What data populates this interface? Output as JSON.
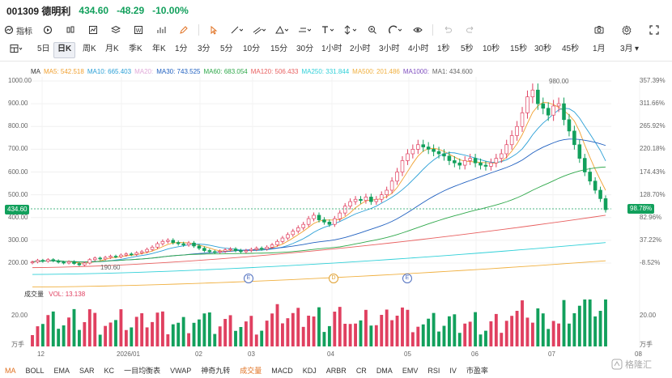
{
  "header": {
    "code": "001309 德明利",
    "price": "434.60",
    "change": "-48.29",
    "pct": "-10.00%"
  },
  "toolbar": {
    "indicator_label": "指标",
    "icons": [
      "indicator-icon",
      "replay-icon",
      "candle-type-icon",
      "chart-type-icon",
      "layers-icon",
      "adjust-icon",
      "compare-icon",
      "pen-icon",
      "cursor-icon",
      "line-tool-icon",
      "channel-tool-icon",
      "fib-tool-icon",
      "pattern-tool-icon",
      "text-tool-icon",
      "measure-tool-icon",
      "zoom-icon",
      "magnet-icon",
      "eye-icon",
      "undo-icon",
      "redo-icon"
    ],
    "right_icons": [
      "screenshot-icon",
      "settings-icon",
      "fullscreen-icon"
    ]
  },
  "periods": [
    "5日",
    "日K",
    "周K",
    "月K",
    "季K",
    "年K",
    "1分",
    "3分",
    "5分",
    "10分",
    "15分",
    "30分",
    "1小时",
    "2小时",
    "3小时",
    "4小时",
    "1秒",
    "5秒",
    "10秒",
    "15秒",
    "30秒",
    "45秒",
    "1月",
    "3月"
  ],
  "active_period": "日K",
  "ma_legend": [
    {
      "text": "MA",
      "color": "#333333"
    },
    {
      "text": "MA5: 542.518",
      "color": "#f0a030"
    },
    {
      "text": "MA10: 665.403",
      "color": "#2a9fd6"
    },
    {
      "text": "MA20:",
      "color": "#e0a8d8"
    },
    {
      "text": "MA30: 743.525",
      "color": "#2060c0"
    },
    {
      "text": "MA60: 683.054",
      "color": "#2ea84a"
    },
    {
      "text": "MA120: 506.433",
      "color": "#e86060"
    },
    {
      "text": "MA250: 331.844",
      "color": "#30d0d8"
    },
    {
      "text": "MA500: 201.486",
      "color": "#f0b040"
    },
    {
      "text": "MA1000:",
      "color": "#8050c0"
    },
    {
      "text": "MA1: 434.600",
      "color": "#666666"
    }
  ],
  "price_axis": [
    "1000.00",
    "900.00",
    "800.00",
    "700.00",
    "600.00",
    "500.00",
    "400.00",
    "300.00",
    "200.00"
  ],
  "pct_axis": [
    "357.39%",
    "311.66%",
    "265.92%",
    "220.18%",
    "174.43%",
    "128.70%",
    "82.96%",
    "37.22%",
    "-8.52%"
  ],
  "last_price_tag": "434.60",
  "last_pct_tag": "98.78%",
  "high_annot": "980.00",
  "low_annot": "190.60",
  "event_markers": [
    "E",
    "D",
    "E"
  ],
  "vol_legend": {
    "title": "成交量",
    "value": "VOL: 13.138"
  },
  "vol_axis": {
    "top": "20.00",
    "unit": "万手",
    "top_r": "20.00",
    "unit_r": "万手"
  },
  "x_axis": [
    "12",
    "2026/01",
    "02",
    "03",
    "04",
    "05",
    "06",
    "07",
    "08"
  ],
  "bottom_tabs": [
    "MA",
    "BOLL",
    "EMA",
    "SAR",
    "KC",
    "一目均衡表",
    "VWAP",
    "神奇九转",
    "成交量",
    "MACD",
    "KDJ",
    "ARBR",
    "CR",
    "DMA",
    "EMV",
    "RSI",
    "IV",
    "市盈率"
  ],
  "watermark": "格隆汇",
  "chart_data": {
    "type": "candlestick",
    "price_range": [
      150,
      1000
    ],
    "closes": [
      205,
      212,
      208,
      215,
      210,
      204,
      200,
      206,
      198,
      192,
      200,
      215,
      222,
      218,
      225,
      230,
      228,
      235,
      240,
      238,
      245,
      250,
      260,
      270,
      285,
      295,
      300,
      290,
      285,
      280,
      288,
      275,
      265,
      255,
      250,
      248,
      252,
      258,
      262,
      255,
      250,
      255,
      260,
      265,
      262,
      270,
      280,
      295,
      310,
      325,
      340,
      355,
      370,
      395,
      410,
      390,
      380,
      370,
      395,
      420,
      450,
      470,
      480,
      475,
      490,
      470,
      480,
      500,
      520,
      560,
      600,
      650,
      680,
      700,
      720,
      710,
      700,
      690,
      680,
      670,
      650,
      640,
      630,
      650,
      660,
      640,
      630,
      625,
      640,
      660,
      680,
      720,
      760,
      800,
      860,
      930,
      960,
      900,
      880,
      850,
      890,
      900,
      830,
      780,
      720,
      660,
      600,
      560,
      520,
      483,
      434.6
    ]
  }
}
